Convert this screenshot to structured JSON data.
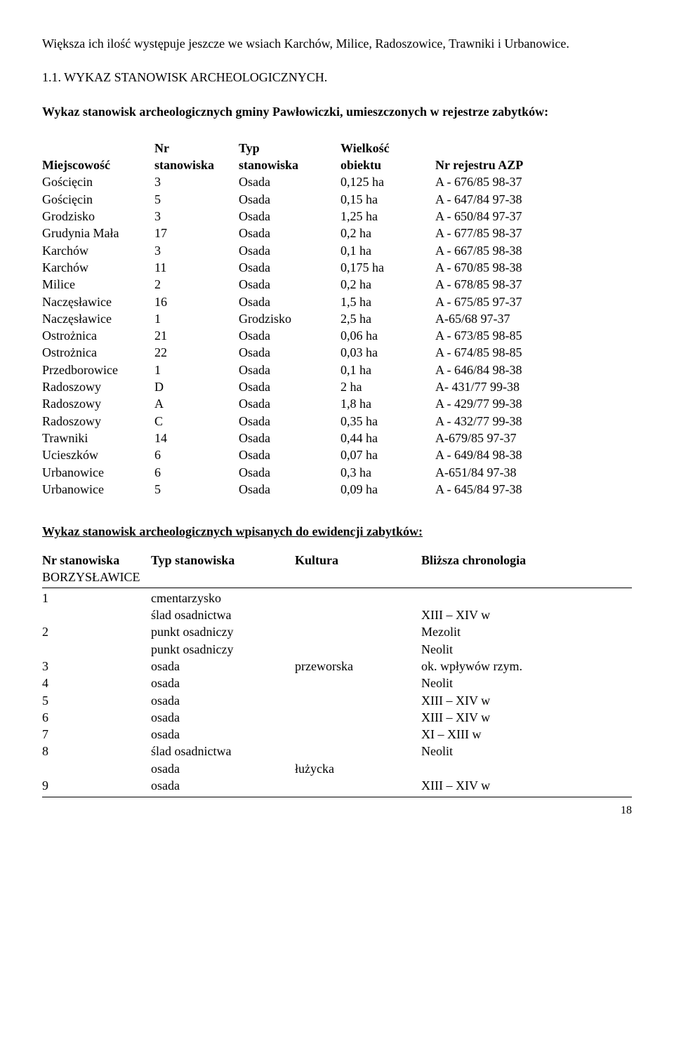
{
  "intro": "Większa ich ilość występuje jeszcze we wsiach Karchów, Milice, Radoszowice, Trawniki i Urbanowice.",
  "title1": "1.1. WYKAZ STANOWISK ARCHEOLOGICZNYCH.",
  "lead1": "Wykaz stanowisk archeologicznych gminy Pawłowiczki, umieszczonych w rejestrze zabytków:",
  "headers1": {
    "c1": "Miejscowość",
    "c2a": "Nr",
    "c2b": "stanowiska",
    "c3a": "Typ",
    "c3b": "stanowiska",
    "c4a": "Wielkość",
    "c4b": "obiektu",
    "c5": "Nr rejestru AZP"
  },
  "rows1": [
    {
      "c1": "Gościęcin",
      "c2": "3",
      "c3": "Osada",
      "c4": "0,125 ha",
      "c5": "A - 676/85 98-37"
    },
    {
      "c1": "Gościęcin",
      "c2": "5",
      "c3": "Osada",
      "c4": "0,15 ha",
      "c5": "A - 647/84 97-38"
    },
    {
      "c1": "Grodzisko",
      "c2": "3",
      "c3": "Osada",
      "c4": "1,25 ha",
      "c5": "A - 650/84 97-37"
    },
    {
      "c1": "Grudynia Mała",
      "c2": "17",
      "c3": "Osada",
      "c4": "0,2 ha",
      "c5": "A - 677/85 98-37"
    },
    {
      "c1": "Karchów",
      "c2": "3",
      "c3": "Osada",
      "c4": "0,1 ha",
      "c5": "A - 667/85 98-38"
    },
    {
      "c1": "Karchów",
      "c2": "11",
      "c3": "Osada",
      "c4": "0,175 ha",
      "c5": "A - 670/85 98-38"
    },
    {
      "c1": "Milice",
      "c2": "2",
      "c3": "Osada",
      "c4": "0,2 ha",
      "c5": "A - 678/85 98-37"
    },
    {
      "c1": "Naczęsławice",
      "c2": "16",
      "c3": "Osada",
      "c4": "1,5 ha",
      "c5": "A - 675/85 97-37"
    },
    {
      "c1": "Naczęsławice",
      "c2": "1",
      "c3": "Grodzisko",
      "c4": "2,5 ha",
      "c5": "A-65/68 97-37"
    },
    {
      "c1": "Ostrożnica",
      "c2": "21",
      "c3": "Osada",
      "c4": "0,06 ha",
      "c5": "A - 673/85 98-85"
    },
    {
      "c1": "Ostrożnica",
      "c2": "22",
      "c3": "Osada",
      "c4": "0,03 ha",
      "c5": "A - 674/85 98-85"
    },
    {
      "c1": "Przedborowice",
      "c2": "1",
      "c3": "Osada",
      "c4": "0,1 ha",
      "c5": "A - 646/84 98-38"
    },
    {
      "c1": "Radoszowy",
      "c2": "D",
      "c3": "Osada",
      "c4": "2 ha",
      "c5": "A- 431/77 99-38"
    },
    {
      "c1": "Radoszowy",
      "c2": "A",
      "c3": "Osada",
      "c4": "1,8 ha",
      "c5": "A - 429/77 99-38"
    },
    {
      "c1": "Radoszowy",
      "c2": "C",
      "c3": "Osada",
      "c4": "0,35 ha",
      "c5": "A - 432/77 99-38"
    },
    {
      "c1": "Trawniki",
      "c2": "14",
      "c3": "Osada",
      "c4": "0,44 ha",
      "c5": "A-679/85 97-37"
    },
    {
      "c1": "Ucieszków",
      "c2": "6",
      "c3": "Osada",
      "c4": "0,07 ha",
      "c5": "A - 649/84 98-38"
    },
    {
      "c1": "Urbanowice",
      "c2": "6",
      "c3": "Osada",
      "c4": "0,3 ha",
      "c5": "A-651/84 97-38"
    },
    {
      "c1": "Urbanowice",
      "c2": "5",
      "c3": "Osada",
      "c4": "0,09 ha",
      "c5": "A - 645/84 97-38"
    }
  ],
  "subtitle2": "Wykaz stanowisk archeologicznych wpisanych do ewidencji zabytków:",
  "headers2": {
    "t1": "Nr stanowiska",
    "t2": "Typ stanowiska",
    "t3": "Kultura",
    "t4": "Bliższa chronologia"
  },
  "group2": "BORZYSŁAWICE",
  "rows2": [
    {
      "d1": "1",
      "d2": "cmentarzysko",
      "d3": "",
      "d4": ""
    },
    {
      "d1": "",
      "d2": "ślad osadnictwa",
      "d3": "",
      "d4": "XIII – XIV w"
    },
    {
      "d1": "2",
      "d2": "punkt osadniczy",
      "d3": "",
      "d4": "Mezolit"
    },
    {
      "d1": "",
      "d2": "punkt osadniczy",
      "d3": "",
      "d4": "Neolit"
    },
    {
      "d1": "3",
      "d2": "osada",
      "d3": "przeworska",
      "d4": "ok. wpływów rzym."
    },
    {
      "d1": "4",
      "d2": "osada",
      "d3": "",
      "d4": "Neolit"
    },
    {
      "d1": "5",
      "d2": "osada",
      "d3": "",
      "d4": "XIII – XIV w"
    },
    {
      "d1": "6",
      "d2": "osada",
      "d3": "",
      "d4": "XIII – XIV w"
    },
    {
      "d1": "7",
      "d2": "osada",
      "d3": "",
      "d4": "XI – XIII w"
    },
    {
      "d1": "8",
      "d2": "ślad osadnictwa",
      "d3": "",
      "d4": "Neolit"
    },
    {
      "d1": "",
      "d2": "osada",
      "d3": "łużycka",
      "d4": ""
    },
    {
      "d1": "9",
      "d2": "osada",
      "d3": "",
      "d4": "XIII – XIV w"
    }
  ],
  "page_number": "18"
}
